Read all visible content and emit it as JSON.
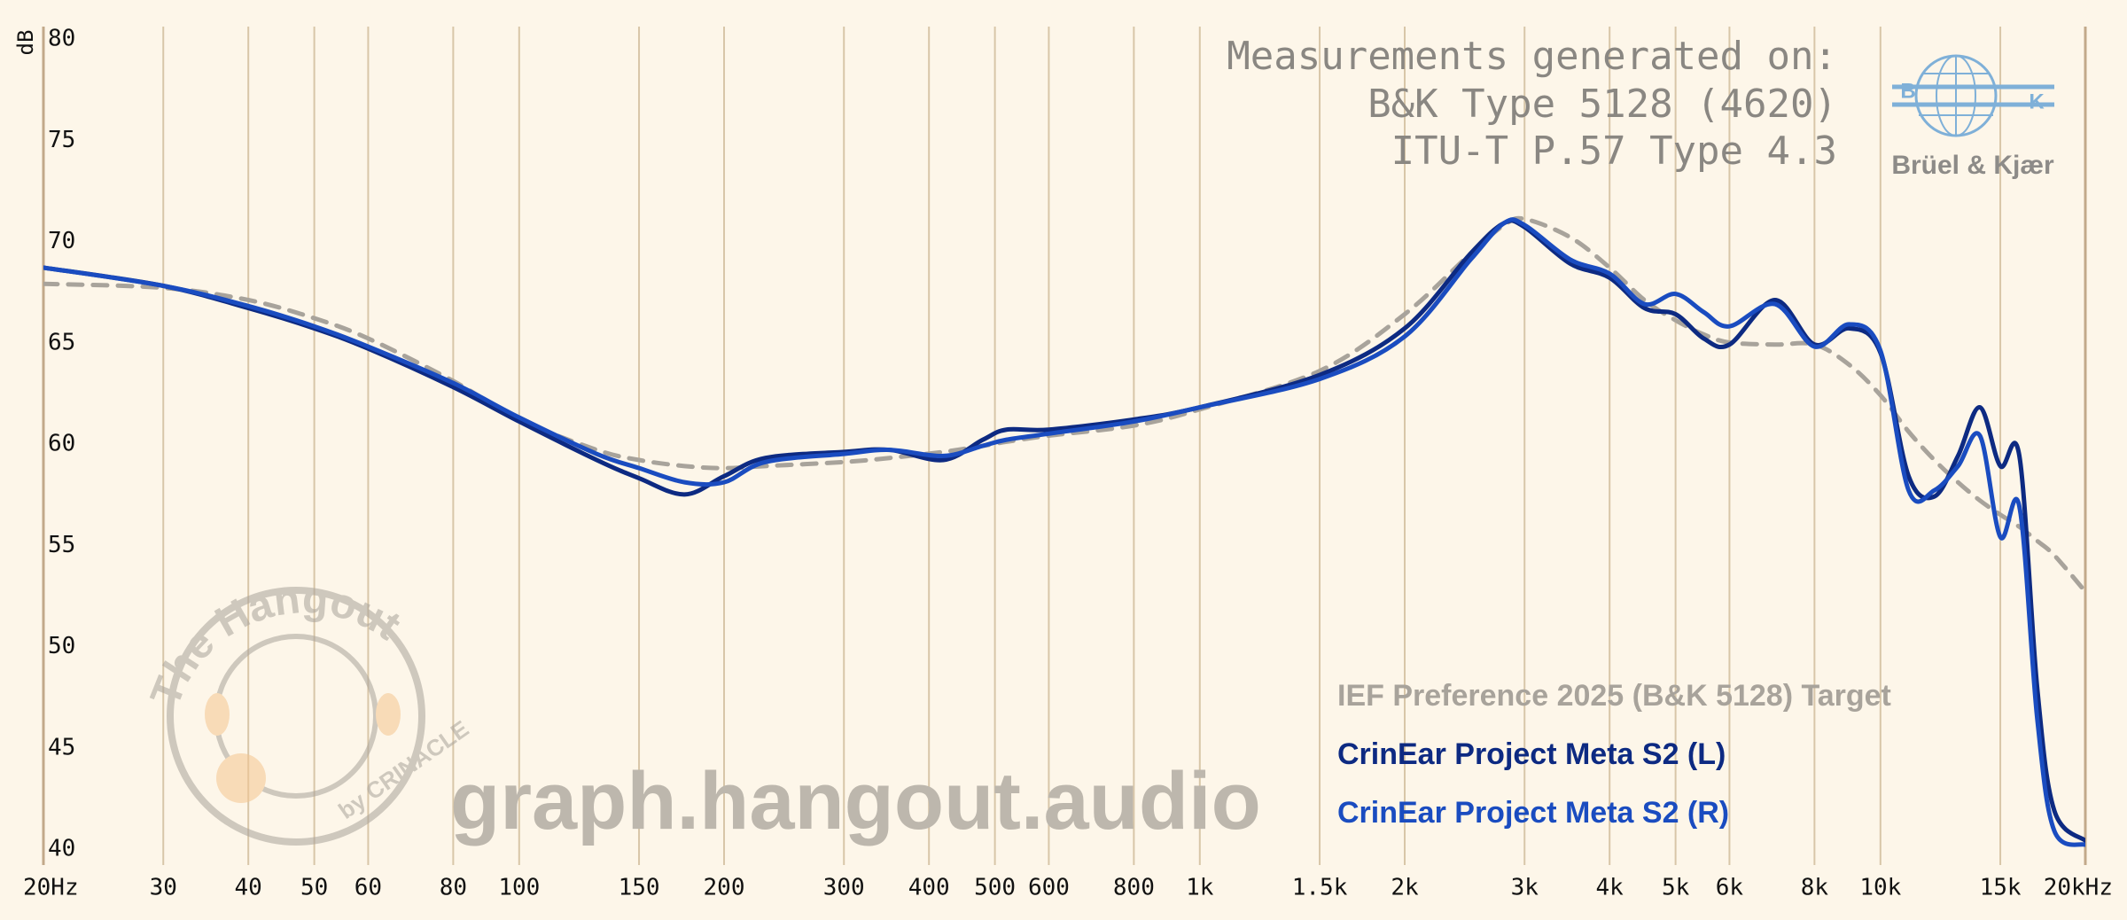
{
  "chart_data": {
    "type": "line",
    "title": [
      "Measurements generated on:",
      "B&K Type 5128 (4620)",
      "ITU-T P.57 Type 4.3"
    ],
    "ylabel": "dB",
    "xscale": "log",
    "grid": true,
    "legend": "lower right",
    "logo": {
      "text": "Brüel & Kjær",
      "letters": [
        "B",
        "K"
      ]
    },
    "watermark": "graph.hangout.audio",
    "watermark_logo": {
      "text": "The Hangout",
      "byline": "by CRINACLE"
    },
    "xlim": [
      20,
      20000
    ],
    "xticks": [
      {
        "value": 20,
        "label": "20Hz"
      },
      30,
      40,
      50,
      60,
      80,
      100,
      150,
      200,
      300,
      400,
      500,
      600,
      800,
      {
        "value": 1000,
        "label": "1k"
      },
      {
        "value": 1500,
        "label": "1.5k"
      },
      {
        "value": 2000,
        "label": "2k"
      },
      {
        "value": 3000,
        "label": "3k"
      },
      {
        "value": 4000,
        "label": "4k"
      },
      {
        "value": 5000,
        "label": "5k"
      },
      {
        "value": 6000,
        "label": "6k"
      },
      {
        "value": 8000,
        "label": "8k"
      },
      {
        "value": 10000,
        "label": "10k"
      },
      {
        "value": 15000,
        "label": "15k"
      },
      {
        "value": 20000,
        "label": "20kHz"
      }
    ],
    "ylim": [
      40,
      80
    ],
    "yticks": [
      40,
      45,
      50,
      55,
      60,
      65,
      70,
      75,
      80
    ],
    "x": [
      20,
      30,
      40,
      50,
      60,
      80,
      100,
      130,
      150,
      175,
      200,
      230,
      300,
      350,
      420,
      480,
      520,
      600,
      800,
      1000,
      1500,
      2000,
      2500,
      2800,
      3000,
      3500,
      4000,
      4500,
      5000,
      5500,
      6000,
      7000,
      8000,
      9000,
      10000,
      11000,
      12000,
      13000,
      14000,
      15000,
      16000,
      17000,
      18000,
      20000
    ],
    "series": [
      {
        "name": "IEF Preference 2025 (B&K 5128) Target",
        "color": "#a8a39b",
        "linestyle": "dashed",
        "values": [
          68,
          67.8,
          67.2,
          66.3,
          65.3,
          63.2,
          61.3,
          59.8,
          59.3,
          59.0,
          58.9,
          59.0,
          59.2,
          59.4,
          59.7,
          60.0,
          60.2,
          60.5,
          61.0,
          61.8,
          63.7,
          66.5,
          69.5,
          70.9,
          71.2,
          70.3,
          68.8,
          67.2,
          66.2,
          65.5,
          65.1,
          65.0,
          65.0,
          64.0,
          62.5,
          60.7,
          59.3,
          58.2,
          57.3,
          56.6,
          56.0,
          55.3,
          54.6,
          52.8
        ]
      },
      {
        "name": "CrinEar Project Meta S2 (L)",
        "color": "#0d2a82",
        "linestyle": "solid",
        "values": [
          68.8,
          67.9,
          66.8,
          65.8,
          64.8,
          62.9,
          61.2,
          59.3,
          58.4,
          57.6,
          58.5,
          59.4,
          59.7,
          59.8,
          59.3,
          60.3,
          60.8,
          60.8,
          61.3,
          61.9,
          63.5,
          65.8,
          69.5,
          71.0,
          70.8,
          69.0,
          68.3,
          66.8,
          66.5,
          65.3,
          65.0,
          67.2,
          65.0,
          65.8,
          64.6,
          58.5,
          57.5,
          59.5,
          61.9,
          59.0,
          59.5,
          48.0,
          42.0,
          40.5
        ]
      },
      {
        "name": "CrinEar Project Meta S2 (R)",
        "color": "#1a4cc0",
        "linestyle": "solid",
        "values": [
          68.8,
          67.9,
          66.9,
          65.9,
          64.9,
          63.1,
          61.4,
          59.6,
          58.9,
          58.2,
          58.2,
          59.2,
          59.6,
          59.8,
          59.5,
          60.0,
          60.3,
          60.6,
          61.2,
          61.9,
          63.3,
          65.4,
          69.2,
          71.0,
          70.9,
          69.2,
          68.5,
          67.0,
          67.5,
          66.6,
          65.9,
          67.0,
          64.9,
          66.0,
          64.7,
          57.8,
          57.8,
          59.0,
          60.5,
          55.5,
          57.0,
          46.5,
          41.0,
          40.3
        ]
      }
    ]
  }
}
